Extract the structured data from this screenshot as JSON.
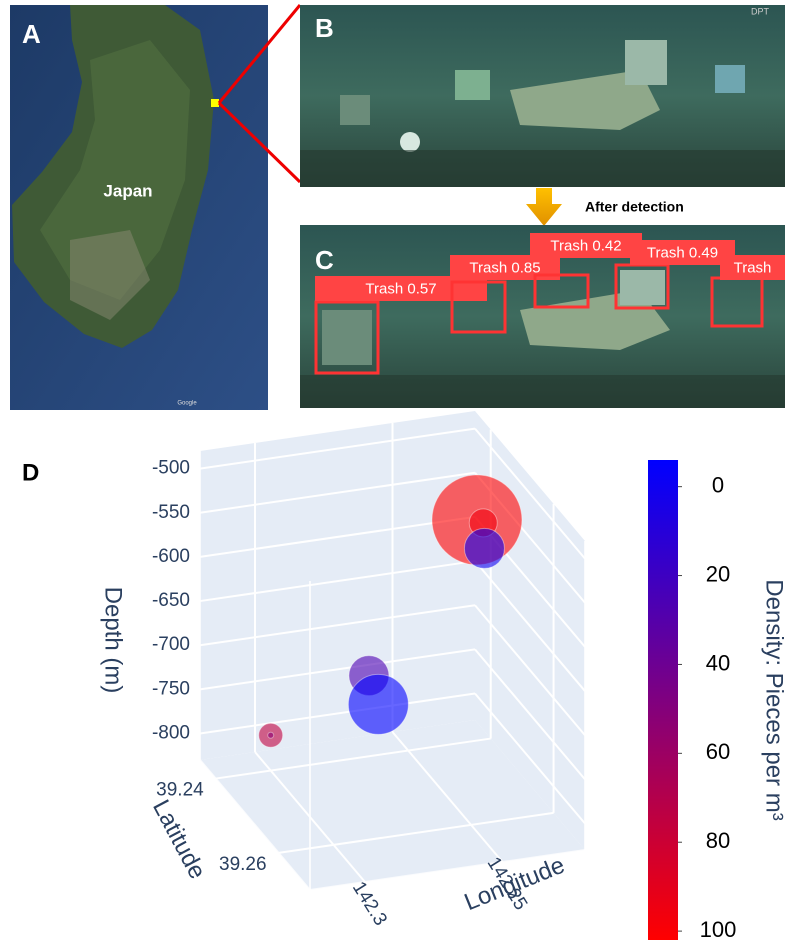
{
  "panels": {
    "a": {
      "label": "A",
      "place": "Japan",
      "credit": "Google"
    },
    "b": {
      "label": "B",
      "overlay": "DPT"
    },
    "c": {
      "label": "C",
      "detections": [
        "Trash 0.57",
        "Trash 0.85",
        "Trash 0.42",
        "Trash 0.49",
        "Trash"
      ]
    },
    "arrow_label": "After detection"
  },
  "chart_data": {
    "type": "scatter3d",
    "label": "D",
    "xlabel": "Longitude",
    "ylabel": "Latitude",
    "zlabel": "Depth (m)",
    "xlim": [
      142.22,
      142.32
    ],
    "xticks": [
      142.25,
      142.3
    ],
    "ylim": [
      39.235,
      39.27
    ],
    "yticks": [
      39.24,
      39.26
    ],
    "zlim": [
      -830,
      -480
    ],
    "zticks": [
      -500,
      -550,
      -600,
      -650,
      -700,
      -750,
      -800
    ],
    "points": {
      "x": [
        142.225,
        142.225,
        142.228,
        142.27,
        142.27,
        142.3,
        142.3
      ],
      "y": [
        39.24,
        39.242,
        39.245,
        39.245,
        39.248,
        39.24,
        39.24
      ],
      "z": [
        -580,
        -575,
        -590,
        -715,
        -735,
        -790,
        -790
      ],
      "sizes": [
        45,
        14,
        20,
        20,
        30,
        12,
        3
      ],
      "color_values": [
        100,
        95,
        5,
        30,
        0,
        75,
        55
      ]
    },
    "marker_opacity": 0.6,
    "grid": true,
    "colorbar": {
      "title": "Density: Pieces per m³",
      "lim": [
        -6,
        102
      ],
      "ticks": [
        0,
        20,
        40,
        60,
        80,
        100
      ],
      "colors": [
        "#0000ff",
        "#ff0000"
      ]
    }
  }
}
